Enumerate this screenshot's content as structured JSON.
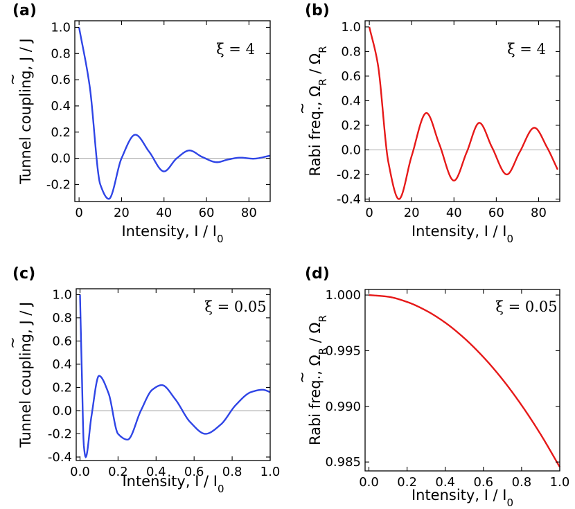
{
  "colors": {
    "blue": "#2f45e6",
    "red": "#e61919"
  },
  "chart_data": [
    {
      "type": "line",
      "panel": "(a)",
      "annotation": "ξ = 4",
      "xlabel": "Intensity, I / I",
      "xlabel_sub": "0",
      "ylabel": "Tunnel coupling,  J / J",
      "ylabel_accent": "~",
      "xlim": [
        -2,
        90
      ],
      "ylim": [
        -0.33,
        1.05
      ],
      "xticks": [
        0,
        20,
        40,
        60,
        80
      ],
      "xtick_labels": [
        "0",
        "20",
        "40",
        "60",
        "80"
      ],
      "yticks": [
        -0.2,
        0.0,
        0.2,
        0.4,
        0.6,
        0.8,
        1.0
      ],
      "ytick_labels": [
        "-0.2",
        "0.0",
        "0.2",
        "0.4",
        "0.6",
        "0.8",
        "1.0"
      ],
      "zero_line": true,
      "color": "#2f45e6",
      "series": [
        {
          "name": "J~/J",
          "x": [
            0,
            5,
            10,
            14,
            20,
            26.5,
            33,
            40,
            46,
            52,
            58,
            65,
            70,
            76,
            82,
            90
          ],
          "y": [
            1.0,
            0.55,
            -0.2,
            -0.31,
            0.0,
            0.18,
            0.05,
            -0.1,
            0.0,
            0.06,
            0.01,
            -0.03,
            -0.01,
            0.005,
            -0.003,
            0.02
          ]
        }
      ]
    },
    {
      "type": "line",
      "panel": "(b)",
      "annotation": "ξ = 4",
      "xlabel": "Intensity, I / I",
      "xlabel_sub": "0",
      "ylabel": "Rabi freq.,  Ω",
      "ylabel_sub": "R",
      "ylabel_tail": " / Ω",
      "ylabel_tail_sub": "R",
      "ylabel_accent": "~",
      "xlim": [
        -2,
        90
      ],
      "ylim": [
        -0.42,
        1.05
      ],
      "xticks": [
        0,
        20,
        40,
        60,
        80
      ],
      "xtick_labels": [
        "0",
        "20",
        "40",
        "60",
        "80"
      ],
      "yticks": [
        -0.4,
        -0.2,
        0.0,
        0.2,
        0.4,
        0.6,
        0.8,
        1.0
      ],
      "ytick_labels": [
        "-0.4",
        "-0.2",
        "0.0",
        "0.2",
        "0.4",
        "0.6",
        "0.8",
        "1.0"
      ],
      "zero_line": true,
      "color": "#e61919",
      "series": [
        {
          "name": "Ω~R/ΩR",
          "x": [
            0,
            4,
            9,
            14,
            20,
            27,
            33,
            40,
            46,
            52,
            58,
            65,
            71,
            78,
            84,
            89
          ],
          "y": [
            1.0,
            0.7,
            -0.1,
            -0.4,
            -0.05,
            0.3,
            0.05,
            -0.25,
            -0.02,
            0.22,
            0.02,
            -0.2,
            -0.02,
            0.18,
            0.02,
            -0.16
          ]
        }
      ]
    },
    {
      "type": "line",
      "panel": "(c)",
      "annotation": "ξ = 0.05",
      "xlabel": "Intensity, I / I",
      "xlabel_sub": "0",
      "ylabel": "Tunnel coupling,  J / J",
      "ylabel_accent": "~",
      "xlim": [
        -0.02,
        1.0
      ],
      "ylim": [
        -0.43,
        1.05
      ],
      "xticks": [
        0.0,
        0.2,
        0.4,
        0.6,
        0.8,
        1.0
      ],
      "xtick_labels": [
        "0.0",
        "0.2",
        "0.4",
        "0.6",
        "0.8",
        "1.0"
      ],
      "yticks": [
        -0.4,
        -0.2,
        0.0,
        0.2,
        0.4,
        0.6,
        0.8,
        1.0
      ],
      "ytick_labels": [
        "-0.4",
        "-0.2",
        "0.0",
        "0.2",
        "0.4",
        "0.6",
        "0.8",
        "1.0"
      ],
      "zero_line": true,
      "color": "#2f45e6",
      "series": [
        {
          "name": "J~/J",
          "x": [
            0.0,
            0.01,
            0.02,
            0.03,
            0.06,
            0.1,
            0.15,
            0.2,
            0.25,
            0.32,
            0.38,
            0.43,
            0.5,
            0.58,
            0.66,
            0.74,
            0.82,
            0.9,
            0.96,
            1.0
          ],
          "y": [
            1.0,
            0.3,
            -0.3,
            -0.4,
            -0.05,
            0.3,
            0.15,
            -0.2,
            -0.25,
            0.0,
            0.18,
            0.22,
            0.1,
            -0.1,
            -0.2,
            -0.12,
            0.05,
            0.16,
            0.18,
            0.16
          ]
        }
      ]
    },
    {
      "type": "line",
      "panel": "(d)",
      "annotation": "ξ = 0.05",
      "xlabel": "Intensity, I / I",
      "xlabel_sub": "0",
      "ylabel": "Rabi freq.,  Ω",
      "ylabel_sub": "R",
      "ylabel_tail": " / Ω",
      "ylabel_tail_sub": "R",
      "ylabel_accent": "~",
      "xlim": [
        -0.02,
        1.0
      ],
      "ylim": [
        0.9842,
        1.0005
      ],
      "xticks": [
        0.0,
        0.2,
        0.4,
        0.6,
        0.8,
        1.0
      ],
      "xtick_labels": [
        "0.0",
        "0.2",
        "0.4",
        "0.6",
        "0.8",
        "1.0"
      ],
      "yticks": [
        0.985,
        0.99,
        0.995,
        1.0
      ],
      "ytick_labels": [
        "0.985",
        "0.990",
        "0.995",
        "1.000"
      ],
      "zero_line": false,
      "color": "#e61919",
      "series": [
        {
          "name": "Ω~R/ΩR",
          "x": [
            0.0,
            0.1,
            0.2,
            0.3,
            0.4,
            0.5,
            0.6,
            0.7,
            0.8,
            0.9,
            1.0
          ],
          "y": [
            1.0,
            0.99985,
            0.99938,
            0.9986,
            0.99752,
            0.99612,
            0.99442,
            0.99242,
            0.9901,
            0.98748,
            0.98455
          ]
        }
      ]
    }
  ]
}
